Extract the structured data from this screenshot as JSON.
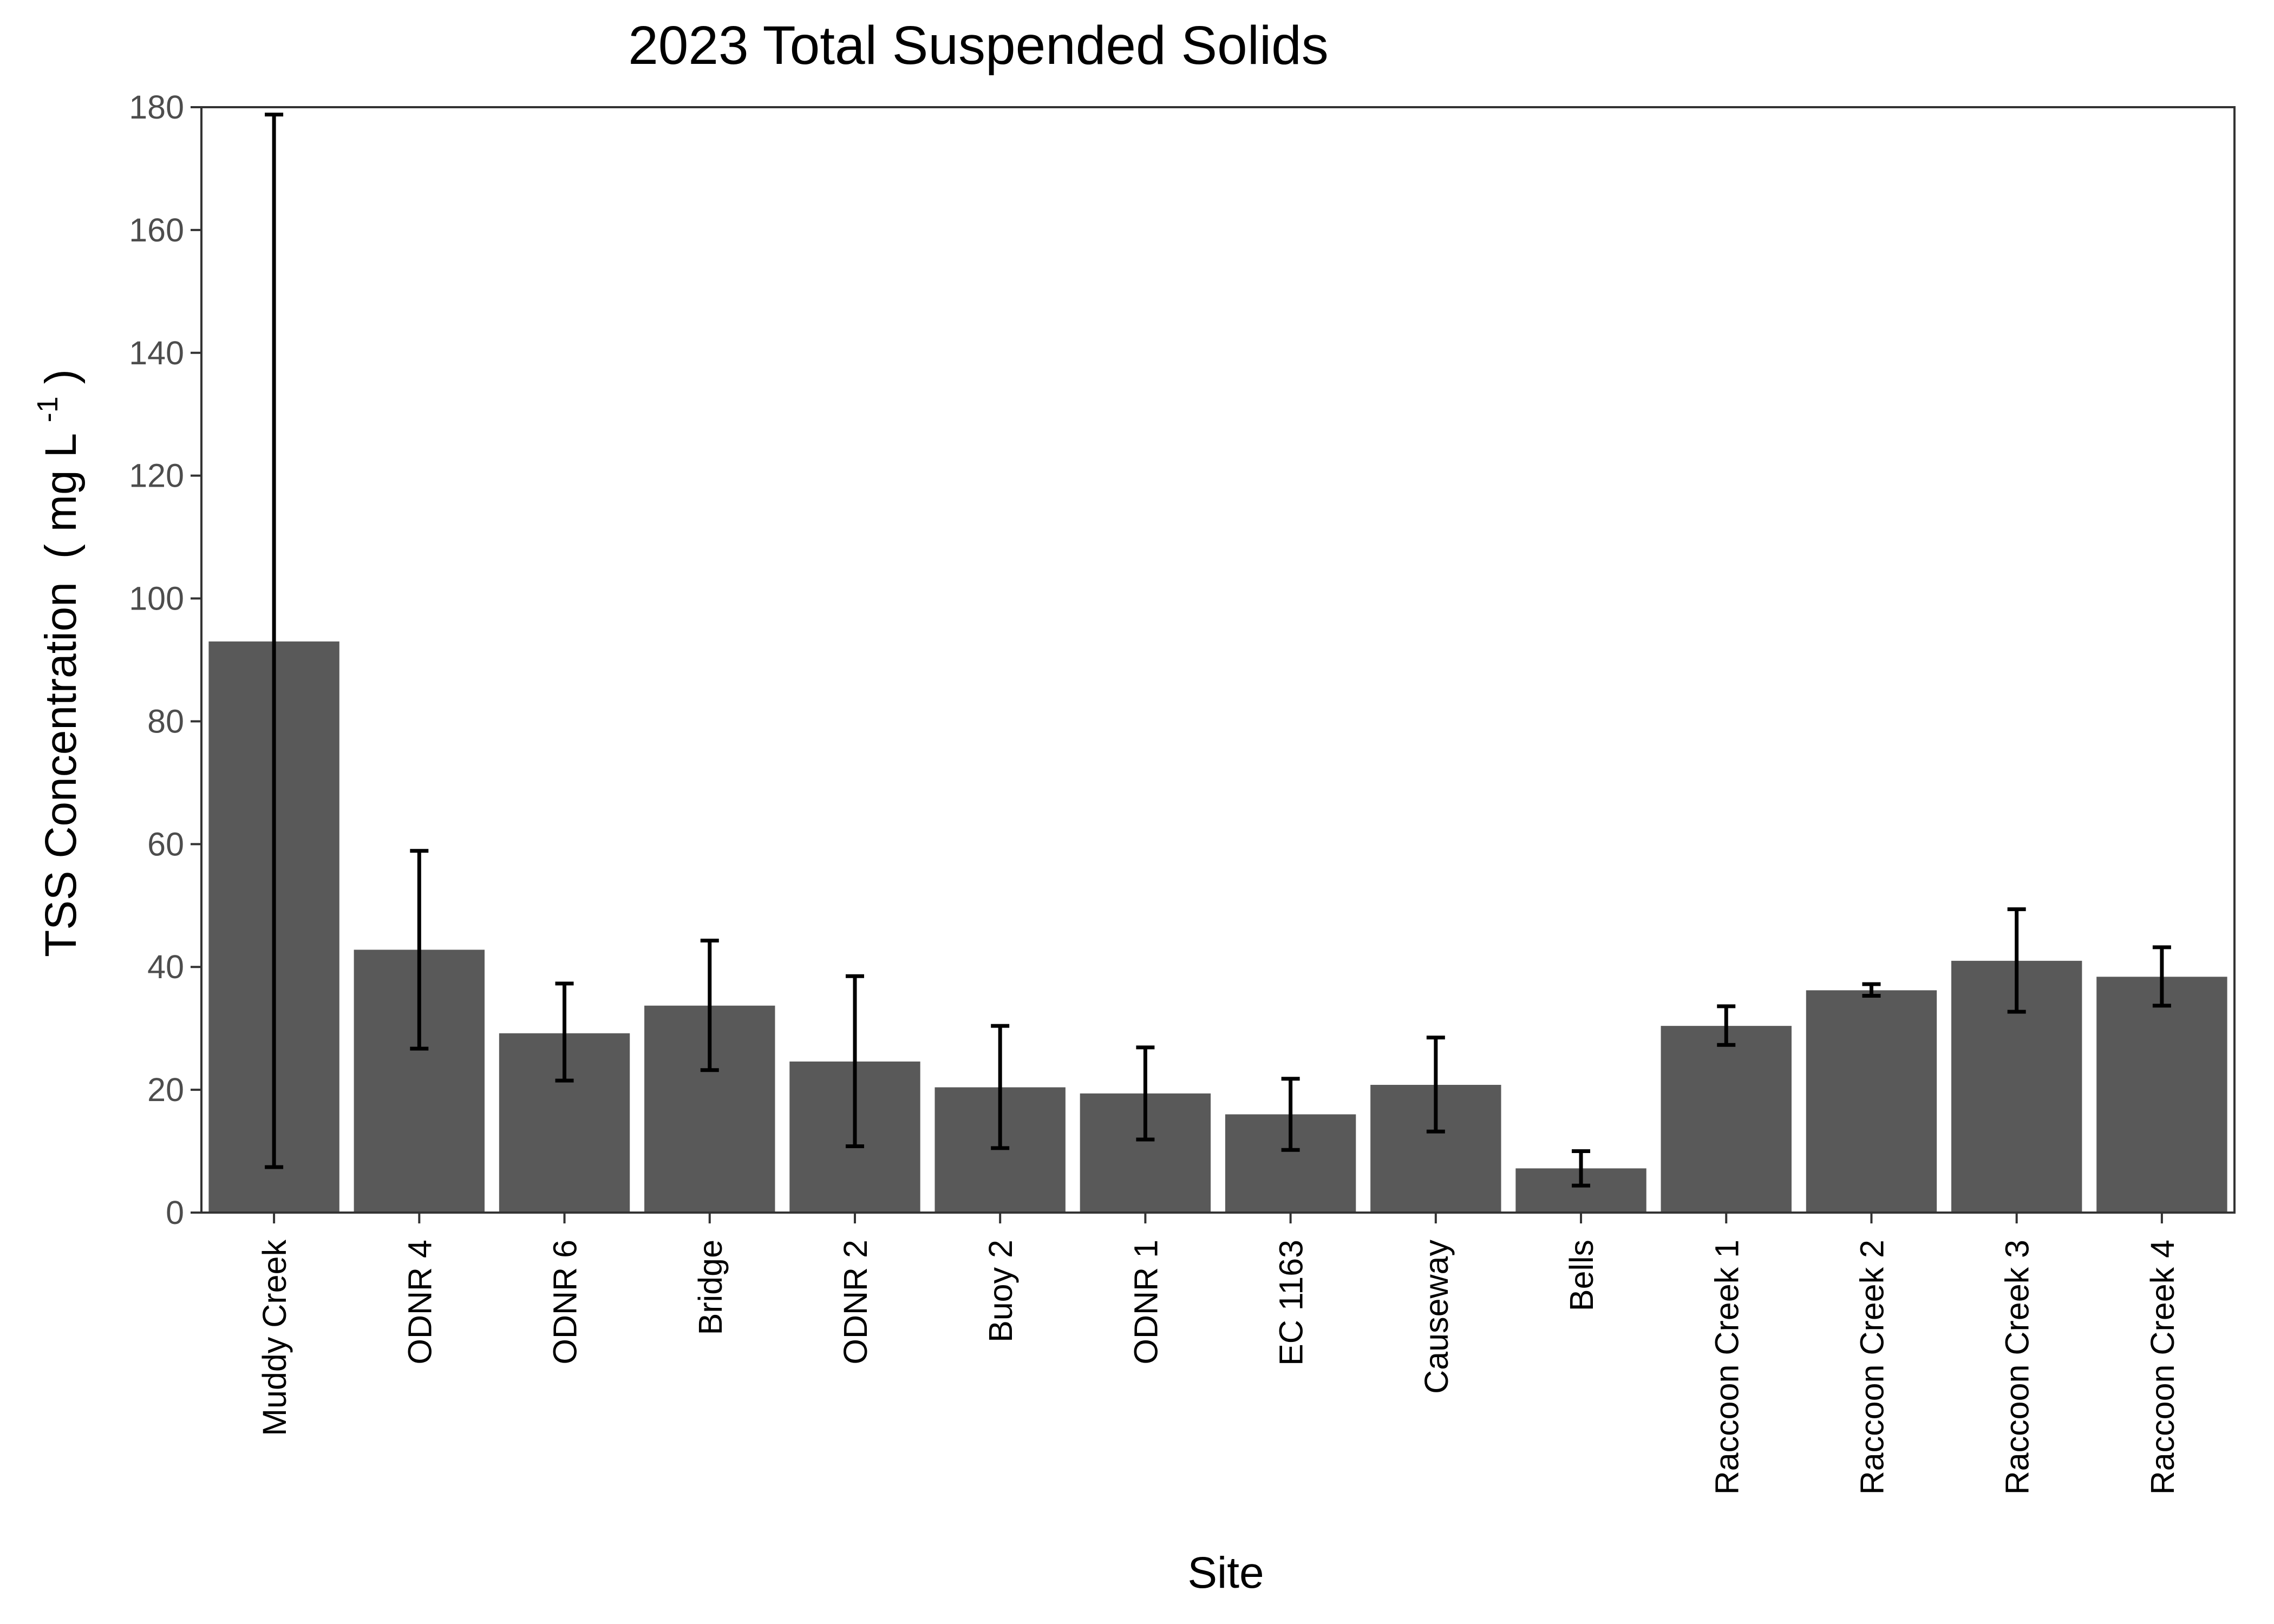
{
  "chart_data": {
    "type": "bar",
    "title": "2023 Total Suspended Solids",
    "xlabel": "Site",
    "ylabel": {
      "main": "TSS Concentration",
      "open": "(",
      "unit": "mg L",
      "superscript": "-1",
      "close": ")"
    },
    "categories": [
      "Muddy Creek",
      "ODNR 4",
      "ODNR 6",
      "Bridge",
      "ODNR 2",
      "Buoy 2",
      "ODNR 1",
      "EC 1163",
      "Causeway",
      "Bells",
      "Raccoon Creek 1",
      "Raccoon Creek 2",
      "Raccoon Creek 3",
      "Raccoon Creek 4"
    ],
    "values": [
      93.0,
      42.8,
      29.2,
      33.7,
      24.6,
      20.4,
      19.4,
      16.0,
      20.8,
      7.2,
      30.4,
      36.2,
      41.0,
      38.4
    ],
    "error_low": [
      7.4,
      26.7,
      21.5,
      23.2,
      10.8,
      10.5,
      11.9,
      10.2,
      13.2,
      4.4,
      27.3,
      35.3,
      32.7,
      33.7
    ],
    "error_high": [
      178.8,
      58.9,
      37.3,
      44.3,
      38.5,
      30.4,
      26.9,
      21.8,
      28.5,
      10.0,
      33.6,
      37.2,
      49.4,
      43.2
    ],
    "y_ticks": [
      "0",
      "20",
      "40",
      "60",
      "80",
      "100",
      "120",
      "140",
      "160",
      "180"
    ],
    "ylim": [
      0,
      180
    ],
    "grid": false,
    "legend": "none",
    "bar_color": "#595959",
    "errorbar_color": "#000000",
    "panel_border_color": "#333333",
    "tick_label_color": "#4d4d4d"
  }
}
